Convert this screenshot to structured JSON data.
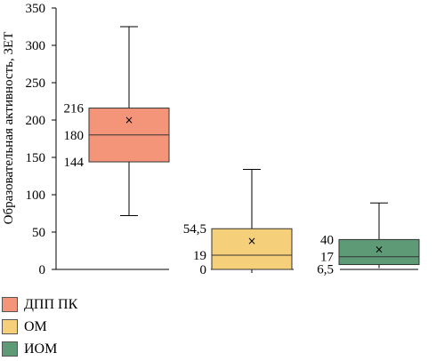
{
  "chart_data": {
    "type": "box",
    "ylabel": "Образовательная активность, ЗЕТ",
    "ylim": [
      0,
      350
    ],
    "yticks": [
      "0",
      "50",
      "100",
      "150",
      "200",
      "250",
      "300",
      "350"
    ],
    "ytick_values": [
      0,
      50,
      100,
      150,
      200,
      250,
      300,
      350
    ],
    "marker_symbol": "×",
    "series": [
      {
        "name": "ДПП ПК",
        "color": "#f4957a",
        "whisker_low": 72,
        "q1": 144,
        "median": 180,
        "q3": 216,
        "whisker_high": 325,
        "mean": 200,
        "labels": {
          "q1": "144",
          "median": "180",
          "q3": "216"
        }
      },
      {
        "name": "ОМ",
        "color": "#f6cf7a",
        "whisker_low": 0,
        "q1": 0,
        "median": 19,
        "q3": 54.5,
        "whisker_high": 134,
        "mean": 38,
        "labels": {
          "q1": "0",
          "median": "19",
          "q3": "54,5"
        }
      },
      {
        "name": "ИОМ",
        "color": "#5e9a76",
        "whisker_low": 6.5,
        "q1": 6.5,
        "median": 17,
        "q3": 40,
        "whisker_high": 89,
        "mean": 27,
        "labels": {
          "q1": "6,5",
          "median": "17",
          "q3": "40"
        }
      }
    ],
    "legend_position": "bottom-left"
  }
}
